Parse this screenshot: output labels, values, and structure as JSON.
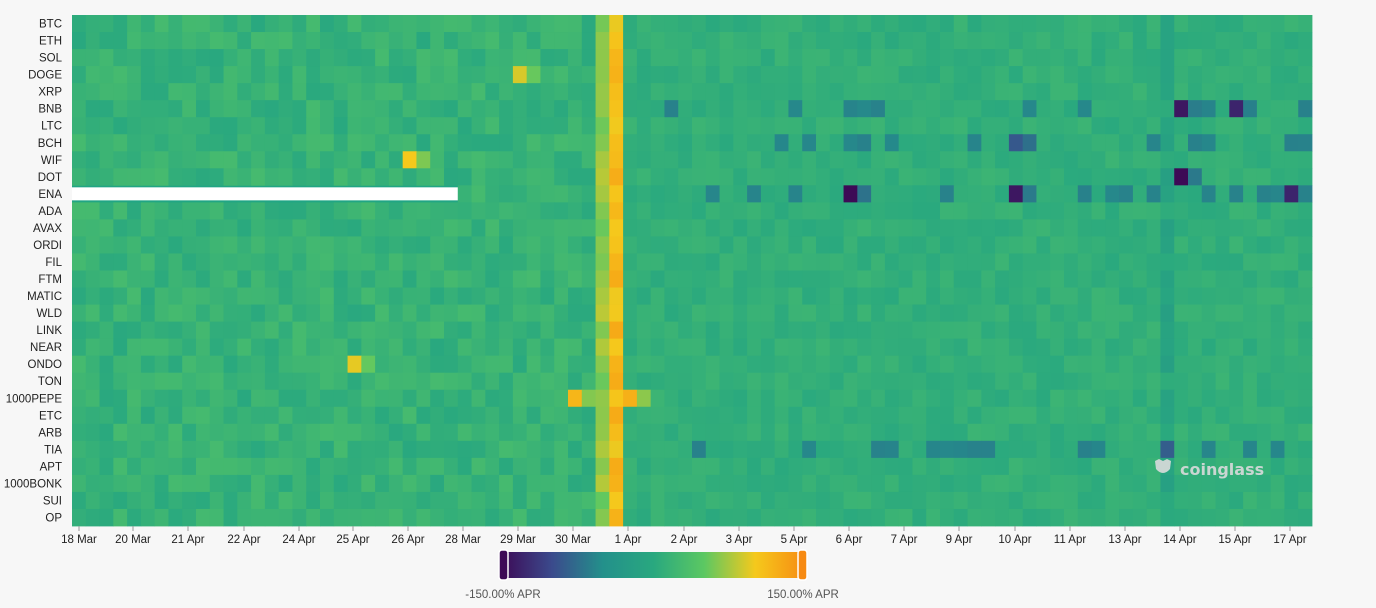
{
  "chart_data": {
    "type": "heatmap",
    "title": "",
    "xlabel": "",
    "ylabel": "",
    "rows": [
      "BTC",
      "ETH",
      "SOL",
      "DOGE",
      "XRP",
      "BNB",
      "LTC",
      "BCH",
      "WIF",
      "DOT",
      "ENA",
      "ADA",
      "AVAX",
      "ORDI",
      "FIL",
      "FTM",
      "MATIC",
      "WLD",
      "LINK",
      "NEAR",
      "ONDO",
      "TON",
      "1000PEPE",
      "ETC",
      "ARB",
      "TIA",
      "APT",
      "1000BONK",
      "SUI",
      "OP"
    ],
    "x_tick_labels": [
      "18 Mar",
      "20 Mar",
      "21 Apr",
      "22 Apr",
      "24 Apr",
      "25 Apr",
      "26 Apr",
      "28 Mar",
      "29 Mar",
      "30 Mar",
      "1 Apr",
      "2 Apr",
      "3 Apr",
      "5 Apr",
      "6 Apr",
      "7 Apr",
      "9 Apr",
      "10 Apr",
      "11 Apr",
      "13 Apr",
      "14 Apr",
      "15 Apr",
      "17 Apr"
    ],
    "columns": 90,
    "value_unit": "% APR",
    "color_scale": {
      "min": -150,
      "max": 150,
      "colormap": "viridis-plasma",
      "colors": [
        "#3d0a56",
        "#3b4a8c",
        "#23908b",
        "#29a87f",
        "#5cc862",
        "#f5c91c",
        "#f78a12"
      ]
    },
    "legend": {
      "min_label": "-150.00% APR",
      "max_label": "150.00% APR",
      "position": "bottom-center"
    },
    "missing": [
      {
        "row": "ENA",
        "from_column": 0,
        "to_column": 27
      }
    ],
    "base_values": {
      "before_1_apr": 10,
      "column_1_apr": 110,
      "after_1_apr": 10
    },
    "notable_cells": [
      {
        "row": "DOGE",
        "x": "29 Mar",
        "value": 90
      },
      {
        "row": "WIF",
        "x": "26 Apr",
        "value": 100
      },
      {
        "row": "ONDO",
        "x": "25 Apr",
        "value": 95
      },
      {
        "row": "1000PEPE",
        "x": "30 Mar",
        "value": 115
      },
      {
        "row": "1000PEPE",
        "x": "1 Apr",
        "value": 120
      },
      {
        "row": "BNB",
        "x": "14 Apr",
        "value": -140
      },
      {
        "row": "BNB",
        "x": "15 Apr",
        "value": -130
      },
      {
        "row": "DOT",
        "x": "14 Apr",
        "value": -150
      },
      {
        "row": "ENA",
        "x": "6 Apr",
        "value": -150
      },
      {
        "row": "ENA",
        "x": "10 Apr",
        "value": -140
      },
      {
        "row": "ENA",
        "x": "17 Apr",
        "value": -130
      },
      {
        "row": "BCH",
        "x": "10 Apr",
        "value": -90
      }
    ],
    "watermark": "coinglass"
  }
}
